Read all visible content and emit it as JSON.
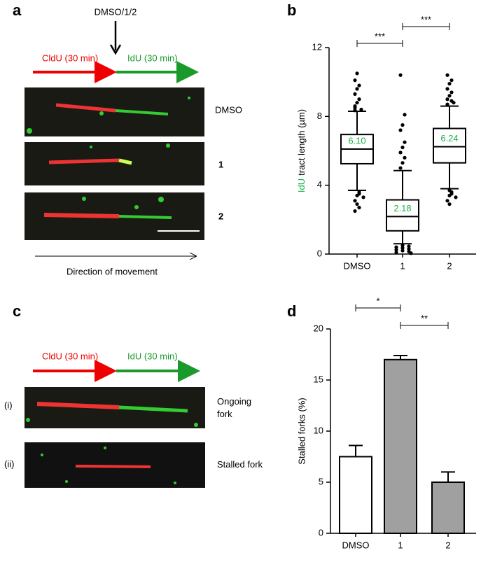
{
  "panels": {
    "a": {
      "label": "a",
      "treatment": "DMSO/1/2",
      "cldu": "CldU  (30 min)",
      "idu": "IdU  (30 min)",
      "rows": [
        "DMSO",
        "1",
        "2"
      ],
      "direction": "Direction of movement"
    },
    "c": {
      "label": "c",
      "cldu": "CldU  (30 min)",
      "idu": "IdU  (30 min)",
      "row_ids": [
        "(i)",
        "(ii)"
      ],
      "rows": [
        "Ongoing fork",
        "Stalled fork"
      ]
    }
  },
  "chart_data": [
    {
      "type": "box",
      "panel": "b",
      "ylabel_parts": [
        {
          "text": "IdU",
          "color": "#1db24a"
        },
        {
          "text": "tract length (µm)",
          "color": "#000000"
        }
      ],
      "categories": [
        "DMSO",
        "1",
        "2"
      ],
      "boxes": [
        {
          "low": 3.7,
          "q1": 5.25,
          "median": 6.1,
          "q3": 6.95,
          "high": 8.3,
          "outliers": [
            8.35,
            8.4,
            8.5,
            8.6,
            8.8,
            9.0,
            9.3,
            9.6,
            9.8,
            10.1,
            10.5,
            3.6,
            3.5,
            3.4,
            3.3,
            3.1,
            2.9,
            2.7,
            2.5
          ]
        },
        {
          "low": 0.6,
          "q1": 1.35,
          "median": 2.18,
          "q3": 3.15,
          "high": 4.85,
          "outliers": [
            5.0,
            5.3,
            5.6,
            5.9,
            6.2,
            6.5,
            7.2,
            7.5,
            8.1,
            10.4,
            0.5,
            0.45,
            0.4,
            0.35,
            0.3,
            0.25,
            0.2,
            0.15,
            0.1,
            0.05
          ]
        },
        {
          "low": 3.8,
          "q1": 5.3,
          "median": 6.24,
          "q3": 7.3,
          "high": 8.6,
          "outliers": [
            8.7,
            8.8,
            8.9,
            9.0,
            9.2,
            9.4,
            9.6,
            9.9,
            10.1,
            10.4,
            3.7,
            3.6,
            3.5,
            3.4,
            3.3,
            3.1,
            2.9
          ]
        }
      ],
      "median_labels": [
        "6.10",
        "2.18",
        "6.24"
      ],
      "median_label_color": "#1db24a",
      "ylim": [
        0,
        12
      ],
      "yticks": [
        0,
        4,
        8,
        12
      ],
      "significance": [
        {
          "between": [
            "DMSO",
            "1"
          ],
          "text": "***"
        },
        {
          "between": [
            "1",
            "2"
          ],
          "text": "***"
        }
      ]
    },
    {
      "type": "bar",
      "panel": "d",
      "ylabel": "Stalled forks (%)",
      "categories": [
        "DMSO",
        "1",
        "2"
      ],
      "values": [
        7.5,
        17,
        5
      ],
      "errors": [
        1.1,
        0.4,
        1.0
      ],
      "colors": [
        "#ffffff",
        "#a0a0a0",
        "#a0a0a0"
      ],
      "ylim": [
        0,
        20
      ],
      "yticks": [
        0,
        5,
        10,
        15,
        20
      ],
      "significance": [
        {
          "between": [
            "DMSO",
            "1"
          ],
          "text": "*"
        },
        {
          "between": [
            "1",
            "2"
          ],
          "text": "**"
        }
      ]
    }
  ]
}
